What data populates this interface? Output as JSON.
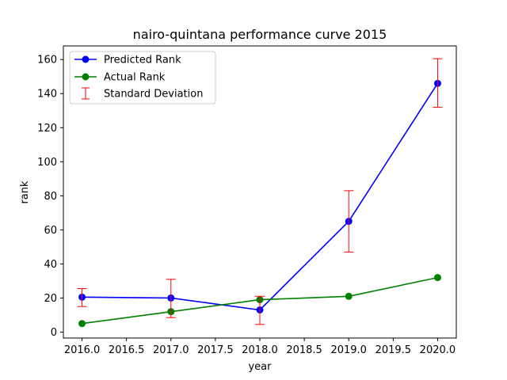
{
  "chart_data": {
    "type": "line",
    "title": "nairo-quintana performance curve 2015",
    "xlabel": "year",
    "ylabel": "rank",
    "xlim": [
      2015.79,
      2020.21
    ],
    "ylim": [
      -3.5,
      168
    ],
    "xticks": [
      "2016.0",
      "2016.5",
      "2017.0",
      "2017.5",
      "2018.0",
      "2018.5",
      "2019.0",
      "2019.5",
      "2020.0"
    ],
    "xtick_values": [
      2016.0,
      2016.5,
      2017.0,
      2017.5,
      2018.0,
      2018.5,
      2019.0,
      2019.5,
      2020.0
    ],
    "yticks": [
      "0",
      "20",
      "40",
      "60",
      "80",
      "100",
      "120",
      "140",
      "160"
    ],
    "ytick_values": [
      0,
      20,
      40,
      60,
      80,
      100,
      120,
      140,
      160
    ],
    "grid": false,
    "legend_position": "top-left",
    "x": [
      2016,
      2017,
      2018,
      2019,
      2020
    ],
    "series": [
      {
        "name": "Predicted Rank",
        "color": "#0000ff",
        "marker": "circle",
        "values": [
          20.5,
          20,
          13,
          65,
          146
        ]
      },
      {
        "name": "Actual Rank",
        "color": "#008000",
        "marker": "circle",
        "values": [
          5,
          12,
          19,
          21,
          32
        ]
      }
    ],
    "error_bars": {
      "name": "Standard Deviation",
      "color": "#ff0000",
      "series": "Predicted Rank",
      "lower": [
        15,
        8.5,
        4.5,
        47,
        132
      ],
      "upper": [
        25.5,
        31,
        21,
        83,
        160.5
      ]
    }
  }
}
